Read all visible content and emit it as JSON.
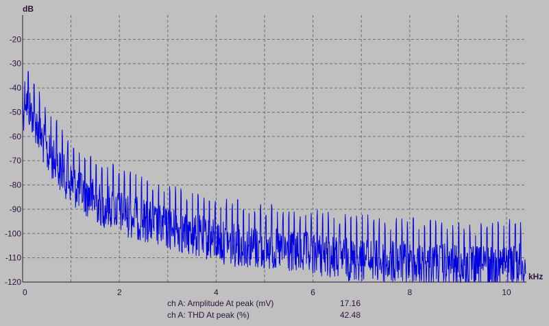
{
  "colors": {
    "background": "#c0c0c0",
    "trace": "#0000e0",
    "axis_text": "#2b1238",
    "grid": "#6e6e6e"
  },
  "chart_data": {
    "type": "line",
    "title": "",
    "ylabel": "dB",
    "xlabel": "kHz",
    "xlim": [
      0,
      10.4
    ],
    "ylim": [
      -120,
      -10
    ],
    "xticks": [
      0,
      2,
      4,
      6,
      8,
      10
    ],
    "yticks": [
      -20,
      -30,
      -40,
      -50,
      -60,
      -70,
      -80,
      -90,
      -100,
      -110,
      -120
    ],
    "grid": true,
    "series": [
      {
        "x": [
          0.0,
          0.05,
          0.1,
          0.15,
          0.2,
          0.25,
          0.3,
          0.35,
          0.4,
          0.45,
          0.5,
          0.6,
          0.7,
          0.8,
          0.9,
          1.0,
          1.1,
          1.2,
          1.3,
          1.4,
          1.5,
          1.6,
          1.7,
          1.8,
          1.9,
          2.0,
          2.2,
          2.4,
          2.6,
          2.8,
          3.0,
          3.2,
          3.4,
          3.6,
          3.8,
          4.0,
          4.2,
          4.4,
          4.6,
          4.8,
          5.0,
          5.2,
          5.4,
          5.6,
          5.8,
          6.0,
          6.2,
          6.4,
          6.6,
          6.8,
          7.0,
          7.2,
          7.4,
          7.6,
          7.8,
          8.0,
          8.2,
          8.4,
          8.6,
          8.8,
          9.0,
          9.2,
          9.4,
          9.6,
          9.8,
          10.0,
          10.2,
          10.4
        ],
        "y": [
          -45,
          -33,
          -38,
          -40,
          -42,
          -44,
          -47,
          -50,
          -52,
          -55,
          -58,
          -60,
          -63,
          -66,
          -68,
          -70,
          -72,
          -73,
          -75,
          -76,
          -78,
          -79,
          -80,
          -80,
          -81,
          -82,
          -84,
          -85,
          -86,
          -88,
          -89,
          -90,
          -91,
          -92,
          -93,
          -94,
          -95,
          -96,
          -96,
          -97,
          -97,
          -98,
          -98,
          -99,
          -99,
          -100,
          -100,
          -101,
          -101,
          -102,
          -102,
          -102,
          -103,
          -103,
          -103,
          -103,
          -104,
          -104,
          -104,
          -104,
          -105,
          -105,
          -105,
          -105,
          -105,
          -104,
          -104,
          -104
        ]
      }
    ]
  },
  "readouts": [
    {
      "label": "ch A: Amplitude At peak (mV)",
      "value": "17.16"
    },
    {
      "label": "ch A: THD At peak (%)",
      "value": "42.48"
    }
  ]
}
